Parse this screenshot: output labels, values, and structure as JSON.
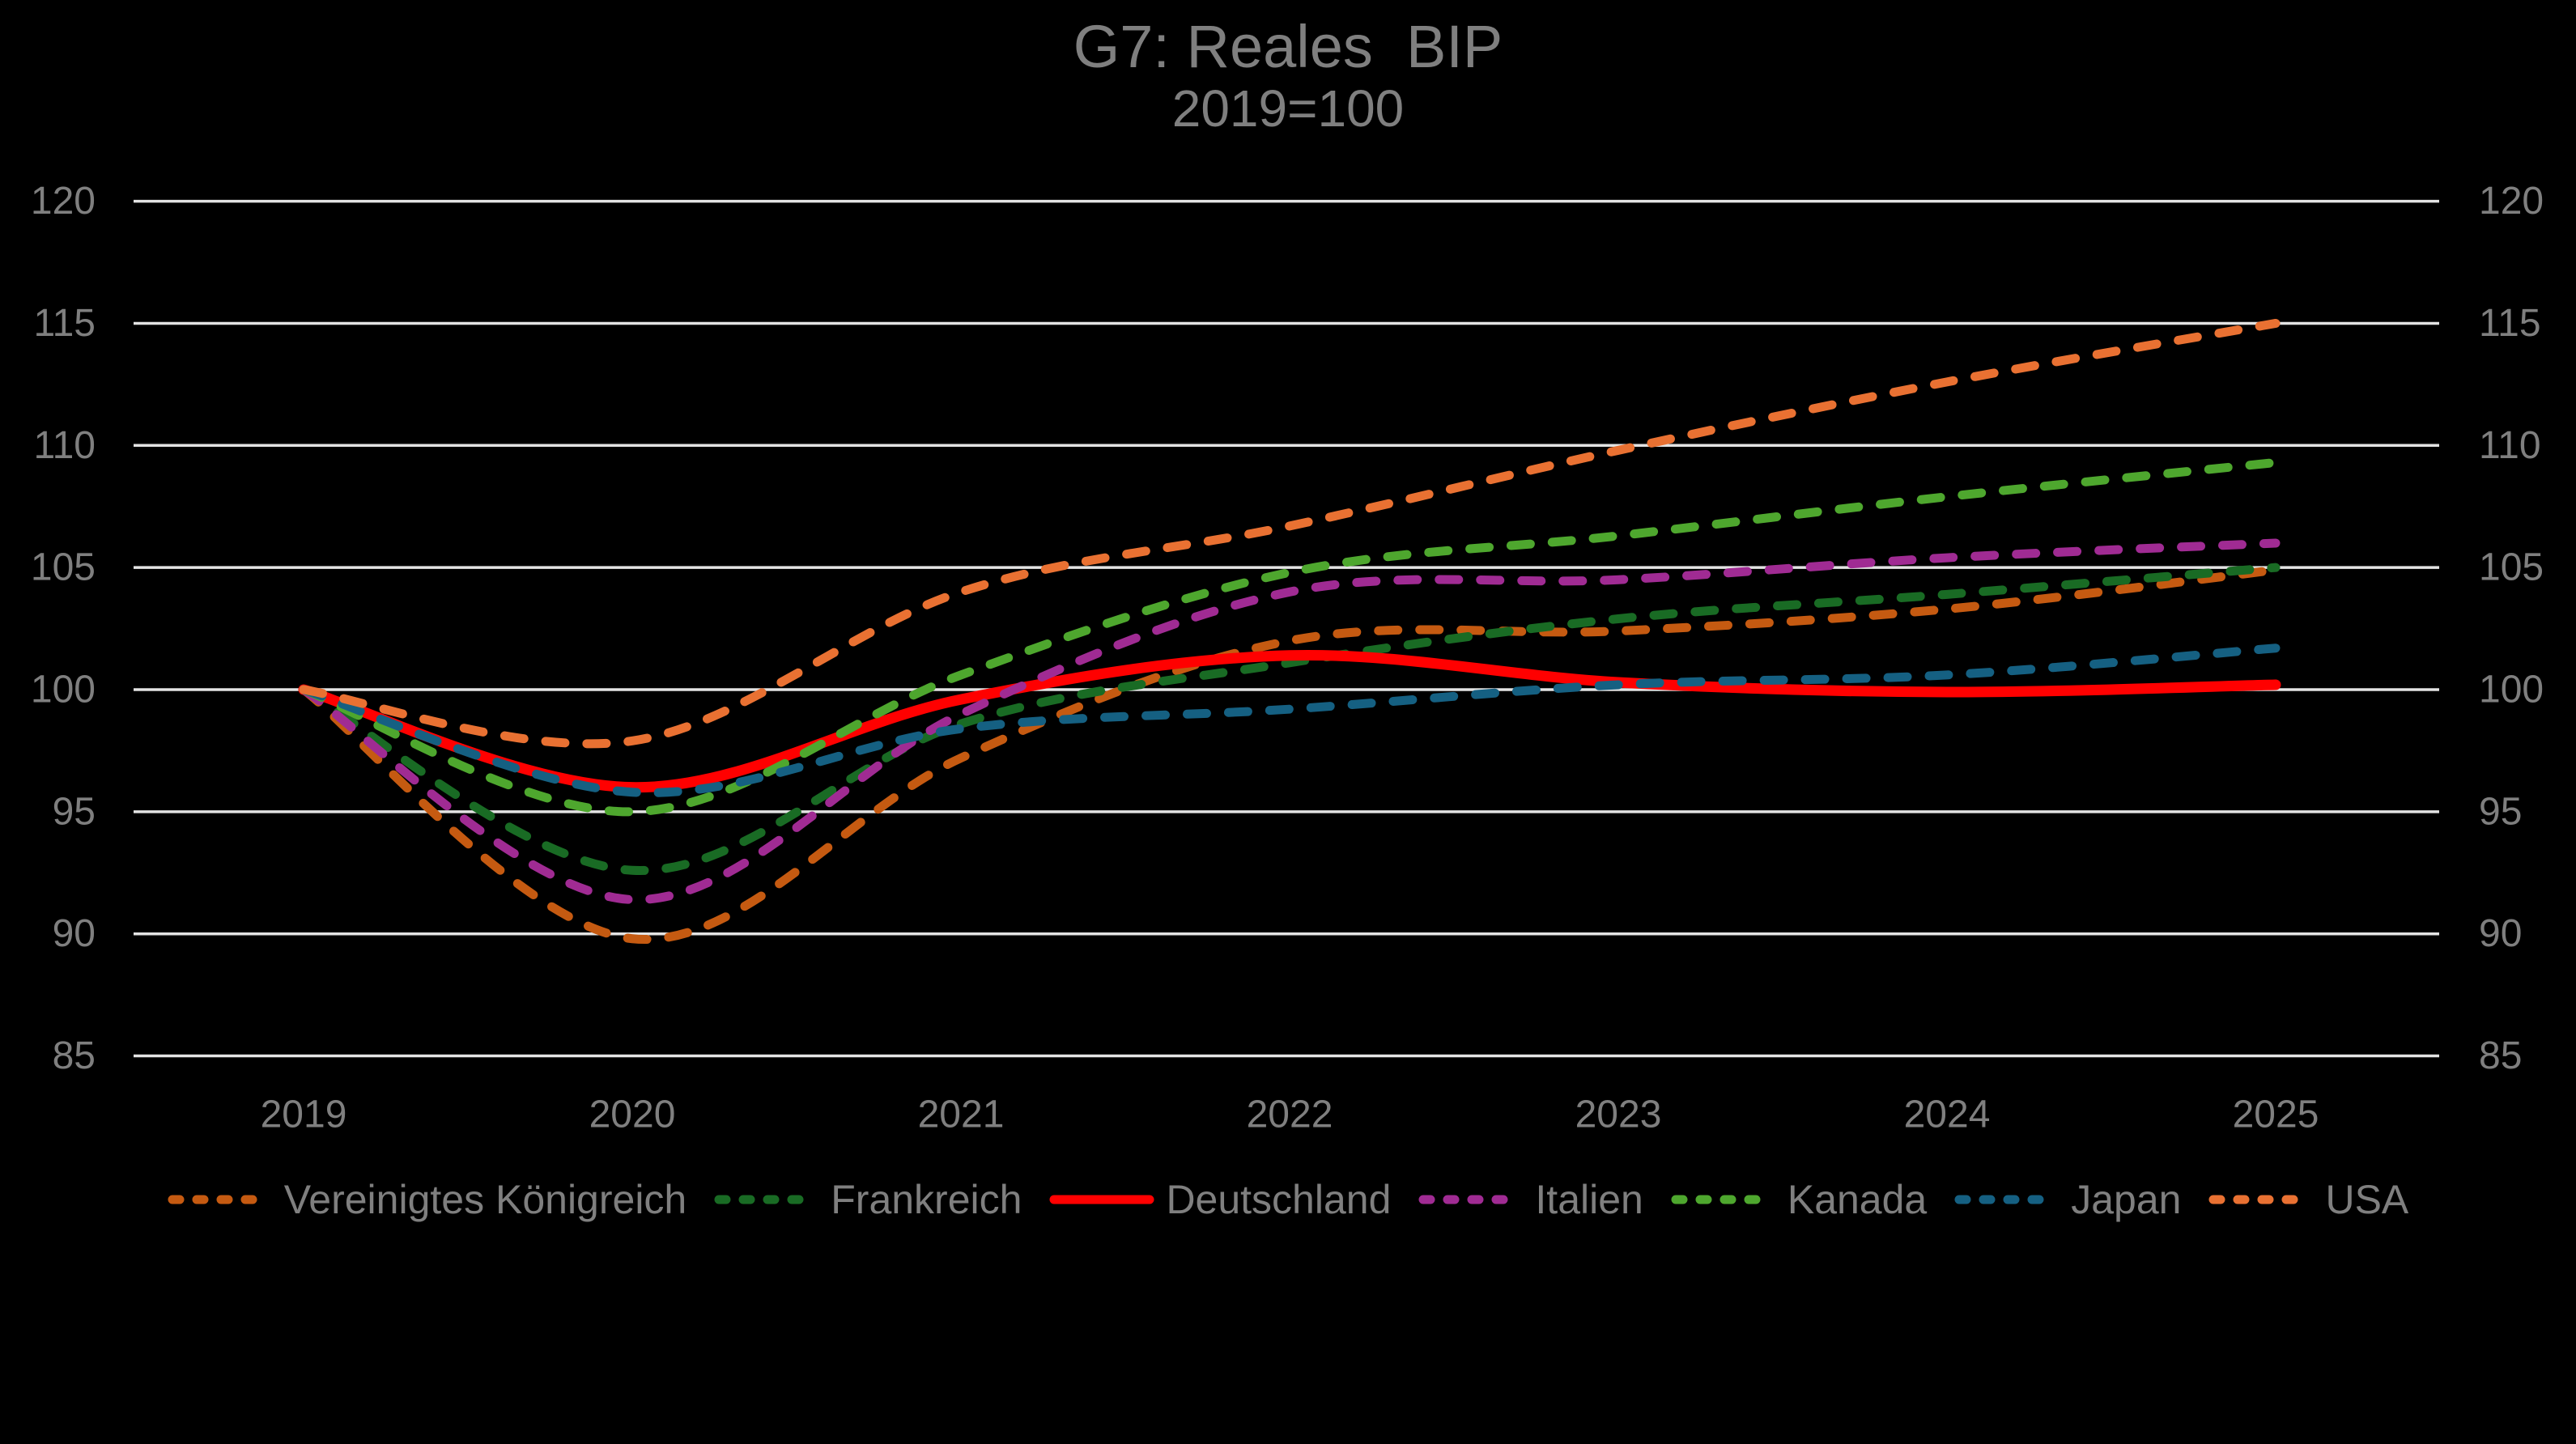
{
  "theme": {
    "background": "#000000",
    "text_color": "#7F7F7F",
    "grid_color": "#E3E3E3"
  },
  "chart_data": {
    "type": "line",
    "title": "G7: Reales  BIP",
    "subtitle": "2019=100",
    "x": [
      2019,
      2020,
      2021,
      2022,
      2023,
      2024,
      2025
    ],
    "xlabel": "",
    "ylabel": "",
    "ylim": [
      85,
      120
    ],
    "yticks": [
      85,
      90,
      95,
      100,
      105,
      110,
      115,
      120
    ],
    "grid": true,
    "y_axis_sides": "both",
    "legend_position": "bottom",
    "line_style_note": "all series dashed except Deutschland solid",
    "series": [
      {
        "name": "Vereinigtes Königreich",
        "color": "#C55A11",
        "style": "dashed",
        "values": [
          100,
          89.8,
          97.2,
          102.0,
          102.4,
          103.3,
          104.9
        ]
      },
      {
        "name": "Frankreich",
        "color": "#196B24",
        "style": "dashed",
        "values": [
          100,
          92.6,
          98.6,
          101.1,
          102.9,
          103.9,
          105.0
        ]
      },
      {
        "name": "Deutschland",
        "color": "#FF0000",
        "style": "solid",
        "values": [
          100,
          96.0,
          99.6,
          101.4,
          100.3,
          99.9,
          100.2
        ]
      },
      {
        "name": "Italien",
        "color": "#A02B93",
        "style": "dashed",
        "values": [
          100,
          91.4,
          99.0,
          104.0,
          104.5,
          105.4,
          106.0
        ]
      },
      {
        "name": "Kanada",
        "color": "#4EA72E",
        "style": "dashed",
        "values": [
          100,
          95.0,
          100.6,
          104.8,
          106.3,
          107.9,
          109.3
        ]
      },
      {
        "name": "Japan",
        "color": "#156082",
        "style": "dashed",
        "values": [
          100,
          95.8,
          98.4,
          99.2,
          100.2,
          100.6,
          101.7
        ]
      },
      {
        "name": "USA",
        "color": "#E97132",
        "style": "dashed",
        "values": [
          100,
          97.9,
          104.0,
          106.7,
          109.8,
          112.6,
          115.0
        ]
      }
    ]
  }
}
